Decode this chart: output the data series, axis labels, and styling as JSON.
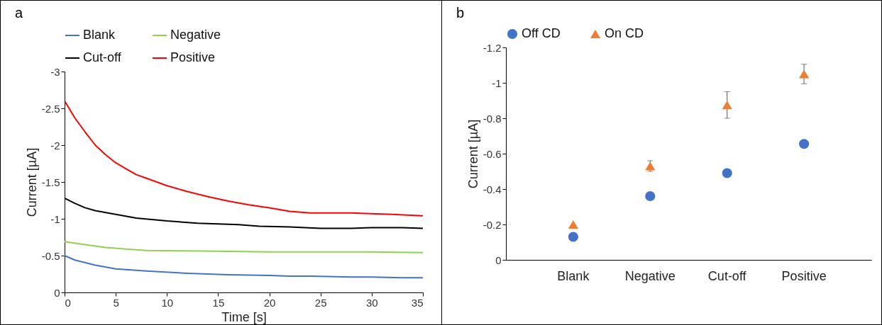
{
  "chart_data": [
    {
      "type": "line",
      "title": "a",
      "xlabel": "Time [s]",
      "ylabel": "Current [µA]",
      "xlim": [
        0,
        35
      ],
      "xticks": [
        0,
        5,
        10,
        15,
        20,
        25,
        30,
        35
      ],
      "ylim": [
        0,
        -3
      ],
      "yticks": [
        0,
        -0.5,
        -1,
        -1.5,
        -2,
        -2.5,
        -3
      ],
      "grid": false,
      "legend": "top",
      "line_style": "solid",
      "marker": "none",
      "series": [
        {
          "name": "Blank",
          "color": "#4472c4",
          "x": [
            0,
            1,
            3,
            5,
            8,
            12,
            16,
            20,
            22,
            24,
            28,
            30,
            33,
            35
          ],
          "values": [
            -0.5,
            -0.44,
            -0.37,
            -0.32,
            -0.29,
            -0.26,
            -0.24,
            -0.23,
            -0.22,
            -0.22,
            -0.21,
            -0.21,
            -0.2,
            -0.2
          ]
        },
        {
          "name": "Negative",
          "color": "#92d050",
          "x": [
            0,
            2,
            4,
            6,
            8,
            12,
            20,
            30,
            35
          ],
          "values": [
            -0.69,
            -0.65,
            -0.61,
            -0.59,
            -0.57,
            -0.565,
            -0.55,
            -0.55,
            -0.54
          ]
        },
        {
          "name": "Cut-off",
          "color": "#000000",
          "x": [
            0,
            1,
            2,
            3,
            5,
            7,
            10,
            13,
            17,
            19,
            22,
            25,
            28,
            30,
            33,
            35
          ],
          "values": [
            -1.28,
            -1.21,
            -1.15,
            -1.11,
            -1.06,
            -1.01,
            -0.97,
            -0.94,
            -0.92,
            -0.9,
            -0.89,
            -0.87,
            -0.87,
            -0.88,
            -0.88,
            -0.87
          ]
        },
        {
          "name": "Positive",
          "color": "#ff0000",
          "x": [
            0,
            1,
            2,
            3,
            4,
            5,
            6,
            7,
            8,
            10,
            12,
            14,
            16,
            18,
            20,
            22,
            24,
            26,
            28,
            30,
            32,
            35
          ],
          "values": [
            -2.6,
            -2.37,
            -2.18,
            -2.0,
            -1.87,
            -1.76,
            -1.68,
            -1.6,
            -1.55,
            -1.45,
            -1.37,
            -1.3,
            -1.24,
            -1.19,
            -1.15,
            -1.1,
            -1.08,
            -1.08,
            -1.08,
            -1.07,
            -1.06,
            -1.04
          ]
        }
      ]
    },
    {
      "type": "scatter",
      "title": "b",
      "ylabel": "Current [µA]",
      "categories": [
        "Blank",
        "Negative",
        "Cut-off",
        "Positive"
      ],
      "ylim": [
        0,
        -1.2
      ],
      "yticks": [
        0,
        -0.2,
        -0.4,
        -0.6,
        -0.8,
        -1,
        -1.2
      ],
      "grid": false,
      "legend": "top",
      "series": [
        {
          "name": "Off CD",
          "color": "#4472c4",
          "marker": "circle",
          "values": [
            -0.13,
            -0.36,
            -0.49,
            -0.655
          ]
        },
        {
          "name": "On CD",
          "color": "#ed7d31",
          "marker": "triangle",
          "values": [
            -0.2,
            -0.53,
            -0.875,
            -1.05
          ],
          "errors": [
            null,
            0.03,
            0.075,
            0.055
          ]
        }
      ]
    }
  ]
}
